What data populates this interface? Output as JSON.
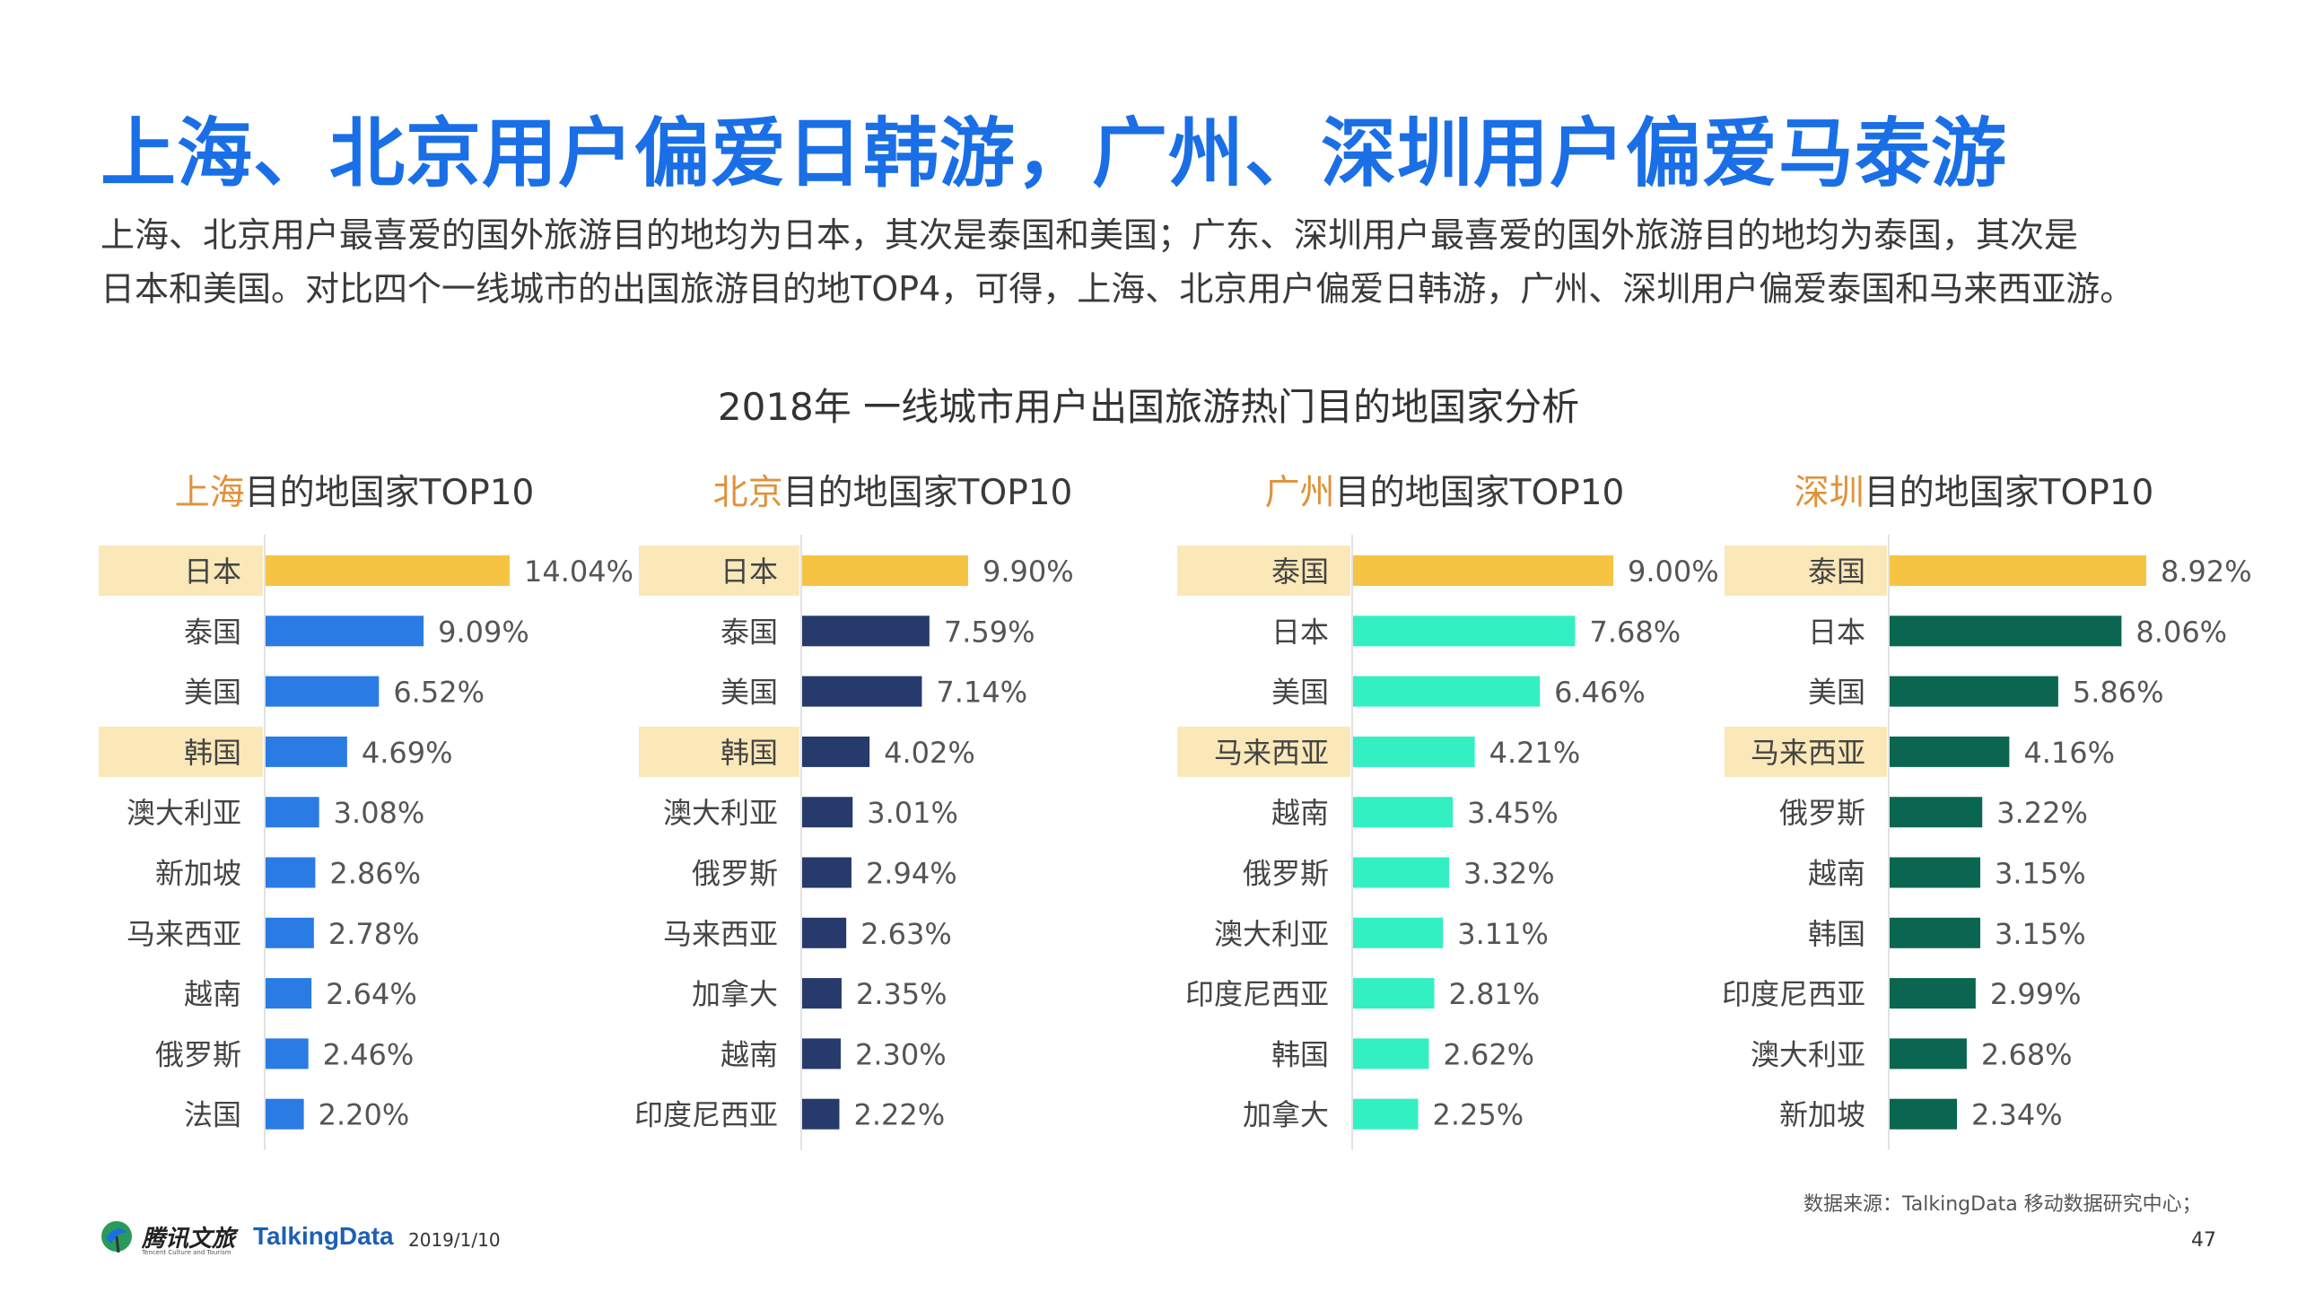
{
  "header": {
    "title": "上海、北京用户偏爱日韩游，广州、深圳用户偏爱马泰游",
    "desc_line1": "上海、北京用户最喜爱的国外旅游目的地均为日本，其次是泰国和美国；广东、深圳用户最喜爱的国外旅游目的地均为泰国，其次是",
    "desc_line2": "日本和美国。对比四个一线城市的出国旅游目的地TOP4，可得，上海、北京用户偏爱日韩游，广州、深圳用户偏爱泰国和马来西亚游。"
  },
  "chart_heading": "2018年 一线城市用户出国旅游热门目的地国家分析",
  "colors": {
    "highlight_bg": "#fbe8b8",
    "top_bar": "#f6c443",
    "shanghai": "#2a7be4",
    "beijing": "#263a6b",
    "guangzhou": "#33f0c2",
    "shenzhen": "#0a6650",
    "city_label": "#e0923a"
  },
  "chart_data": [
    {
      "type": "bar",
      "city": "上海",
      "title_suffix": "目的地国家TOP10",
      "categories": [
        "日本",
        "泰国",
        "美国",
        "韩国",
        "澳大利亚",
        "新加坡",
        "马来西亚",
        "越南",
        "俄罗斯",
        "法国"
      ],
      "values": [
        14.04,
        9.09,
        6.52,
        4.69,
        3.08,
        2.86,
        2.78,
        2.64,
        2.46,
        2.2
      ],
      "labels": [
        "14.04%",
        "9.09%",
        "6.52%",
        "4.69%",
        "3.08%",
        "2.86%",
        "2.78%",
        "2.64%",
        "2.46%",
        "2.20%"
      ],
      "highlight": [
        0,
        3
      ],
      "bar_color": "#2a7be4"
    },
    {
      "type": "bar",
      "city": "北京",
      "title_suffix": "目的地国家TOP10",
      "categories": [
        "日本",
        "泰国",
        "美国",
        "韩国",
        "澳大利亚",
        "俄罗斯",
        "马来西亚",
        "加拿大",
        "越南",
        "印度尼西亚"
      ],
      "values": [
        9.9,
        7.59,
        7.14,
        4.02,
        3.01,
        2.94,
        2.63,
        2.35,
        2.3,
        2.22
      ],
      "labels": [
        "9.90%",
        "7.59%",
        "7.14%",
        "4.02%",
        "3.01%",
        "2.94%",
        "2.63%",
        "2.35%",
        "2.30%",
        "2.22%"
      ],
      "highlight": [
        0,
        3
      ],
      "bar_color": "#263a6b"
    },
    {
      "type": "bar",
      "city": "广州",
      "title_suffix": "目的地国家TOP10",
      "categories": [
        "泰国",
        "日本",
        "美国",
        "马来西亚",
        "越南",
        "俄罗斯",
        "澳大利亚",
        "印度尼西亚",
        "韩国",
        "加拿大"
      ],
      "values": [
        9.0,
        7.68,
        6.46,
        4.21,
        3.45,
        3.32,
        3.11,
        2.81,
        2.62,
        2.25
      ],
      "labels": [
        "9.00%",
        "7.68%",
        "6.46%",
        "4.21%",
        "3.45%",
        "3.32%",
        "3.11%",
        "2.81%",
        "2.62%",
        "2.25%"
      ],
      "highlight": [
        0,
        3
      ],
      "bar_color": "#33f0c2"
    },
    {
      "type": "bar",
      "city": "深圳",
      "title_suffix": "目的地国家TOP10",
      "categories": [
        "泰国",
        "日本",
        "美国",
        "马来西亚",
        "俄罗斯",
        "越南",
        "韩国",
        "印度尼西亚",
        "澳大利亚",
        "新加坡"
      ],
      "values": [
        8.92,
        8.06,
        5.86,
        4.16,
        3.22,
        3.15,
        3.15,
        2.99,
        2.68,
        2.34
      ],
      "labels": [
        "8.92%",
        "8.06%",
        "5.86%",
        "4.16%",
        "3.22%",
        "3.15%",
        "3.15%",
        "2.99%",
        "2.68%",
        "2.34%"
      ],
      "highlight": [
        0,
        3
      ],
      "bar_color": "#0a6650"
    }
  ],
  "footer": {
    "source": "数据来源：TalkingData 移动数据研究中心；",
    "page_number": "47",
    "brand": "腾讯文旅",
    "brand_sub": "Tencent Culture and Tourism",
    "partner": "TalkingData",
    "date": "2019/1/10"
  }
}
